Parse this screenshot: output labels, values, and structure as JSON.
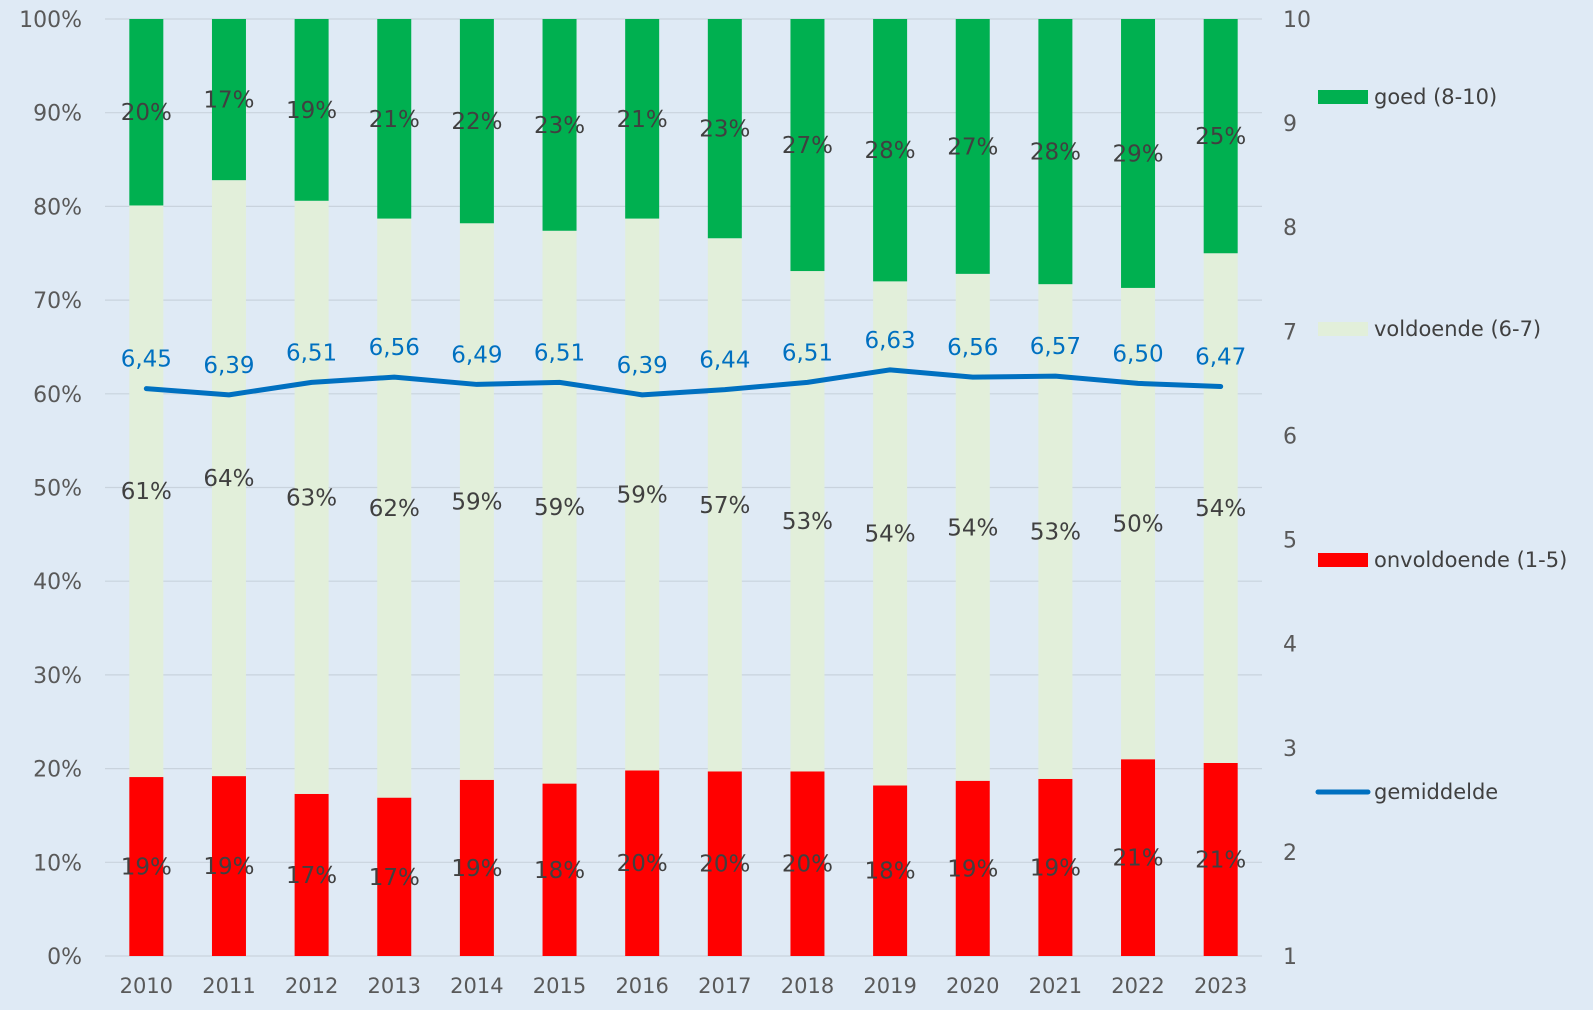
{
  "chart_data": {
    "type": "bar",
    "stacked": true,
    "categories": [
      "2010",
      "2011",
      "2012",
      "2013",
      "2014",
      "2015",
      "2016",
      "2017",
      "2018",
      "2019",
      "2020",
      "2021",
      "2022",
      "2023"
    ],
    "series": [
      {
        "name": "onvoldoende (1-5)",
        "color": "#ff0000",
        "values": [
          19.1,
          19.2,
          17.3,
          16.9,
          18.8,
          18.4,
          19.8,
          19.7,
          19.7,
          18.2,
          18.7,
          18.9,
          21.0,
          20.6
        ],
        "labels": [
          "19%",
          "19%",
          "17%",
          "17%",
          "19%",
          "18%",
          "20%",
          "20%",
          "20%",
          "18%",
          "19%",
          "19%",
          "21%",
          "21%"
        ]
      },
      {
        "name": "voldoende (6-7)",
        "color": "#e2efda",
        "values": [
          61.0,
          63.6,
          63.3,
          61.8,
          59.4,
          59.0,
          58.9,
          56.9,
          53.4,
          53.8,
          54.1,
          52.8,
          50.3,
          54.4
        ],
        "labels": [
          "61%",
          "64%",
          "63%",
          "62%",
          "59%",
          "59%",
          "59%",
          "57%",
          "53%",
          "54%",
          "54%",
          "53%",
          "50%",
          "54%"
        ]
      },
      {
        "name": "goed (8-10)",
        "color": "#00b050",
        "values": [
          19.9,
          17.2,
          19.4,
          21.3,
          21.8,
          22.6,
          21.3,
          23.4,
          26.9,
          28.0,
          27.2,
          28.3,
          28.7,
          25.0
        ],
        "labels": [
          "20%",
          "17%",
          "19%",
          "21%",
          "22%",
          "23%",
          "21%",
          "23%",
          "27%",
          "28%",
          "27%",
          "28%",
          "29%",
          "25%"
        ]
      }
    ],
    "line": {
      "name": "gemiddelde",
      "color": "#0070c0",
      "axis": "right",
      "values": [
        6.45,
        6.39,
        6.51,
        6.56,
        6.49,
        6.51,
        6.39,
        6.44,
        6.51,
        6.63,
        6.56,
        6.57,
        6.5,
        6.47
      ],
      "labels": [
        "6,45",
        "6,39",
        "6,51",
        "6,56",
        "6,49",
        "6,51",
        "6,39",
        "6,44",
        "6,51",
        "6,63",
        "6,56",
        "6,57",
        "6,50",
        "6,47"
      ]
    },
    "y_left": {
      "min": 0,
      "max": 100,
      "ticks": [
        "0%",
        "10%",
        "20%",
        "30%",
        "40%",
        "50%",
        "60%",
        "70%",
        "80%",
        "90%",
        "100%"
      ]
    },
    "y_right": {
      "min": 1,
      "max": 10,
      "ticks": [
        "1",
        "2",
        "3",
        "4",
        "5",
        "6",
        "7",
        "8",
        "9",
        "10"
      ]
    },
    "grid": true,
    "legend_position": "right",
    "legend_order": [
      "goed (8-10)",
      "voldoende (6-7)",
      "onvoldoende (1-5)",
      "gemiddelde"
    ]
  }
}
